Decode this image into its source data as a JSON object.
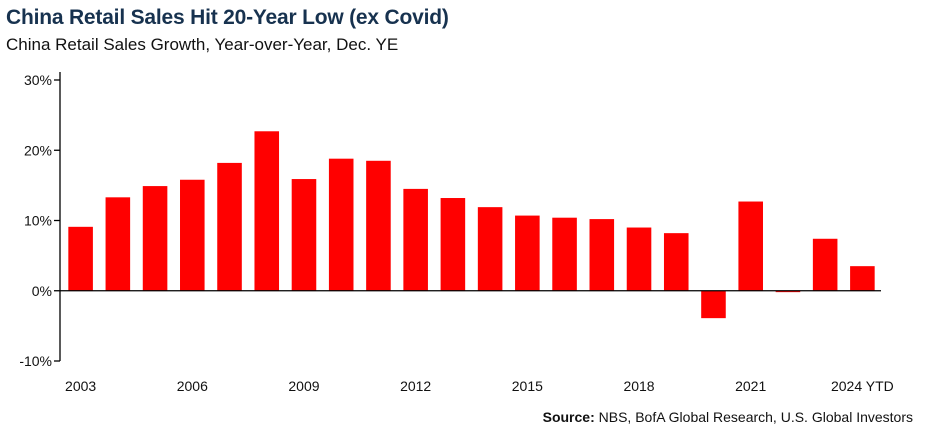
{
  "title": "China Retail Sales Hit 20-Year Low (ex Covid)",
  "subtitle": "China Retail Sales Growth, Year-over-Year, Dec. YE",
  "source": {
    "label": "Source:",
    "text": " NBS, BofA Global Research, U.S. Global Investors"
  },
  "colors": {
    "bar": "#ff0000",
    "axis": "#000000",
    "title": "#17324f"
  },
  "chart_data": {
    "type": "bar",
    "categories": [
      "2003",
      "2004",
      "2005",
      "2006",
      "2007",
      "2008",
      "2009",
      "2010",
      "2011",
      "2012",
      "2013",
      "2014",
      "2015",
      "2016",
      "2017",
      "2018",
      "2019",
      "2020",
      "2021",
      "2022",
      "2023",
      "2024 YTD"
    ],
    "values": [
      9.1,
      13.3,
      14.9,
      15.8,
      18.2,
      22.7,
      15.9,
      18.8,
      18.5,
      14.5,
      13.2,
      11.9,
      10.7,
      10.4,
      10.2,
      9.0,
      8.2,
      -3.9,
      12.7,
      -0.2,
      7.4,
      3.5
    ],
    "x_tick_labels": [
      "2003",
      "2006",
      "2009",
      "2012",
      "2015",
      "2018",
      "2021",
      "2024 YTD"
    ],
    "y_ticks": [
      -10,
      0,
      10,
      20,
      30
    ],
    "y_tick_labels": [
      "-10%",
      "0%",
      "10%",
      "20%",
      "30%"
    ],
    "ylim": [
      -10,
      30
    ],
    "xlabel": "",
    "ylabel": "",
    "grid": false,
    "legend": "none"
  }
}
